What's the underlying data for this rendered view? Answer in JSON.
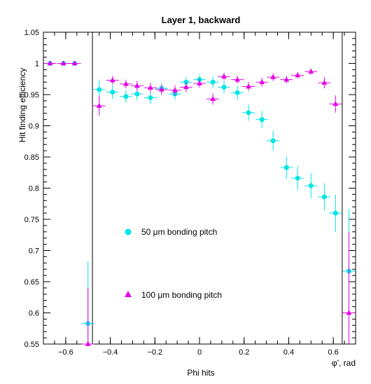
{
  "chart_data": {
    "type": "scatter",
    "title": "Layer 1, backward",
    "xlabel": "Phi hits",
    "ylabel": "Hit finding efficiency",
    "corner_label": "φ', rad",
    "xlim": [
      -0.7,
      0.7
    ],
    "ylim": [
      0.55,
      1.05
    ],
    "x_ticks": [
      -0.6,
      -0.4,
      -0.2,
      0,
      0.2,
      0.4,
      0.6
    ],
    "x_tick_labels": [
      "−0.6",
      "−0.4",
      "−0.2",
      "0",
      "0.2",
      "0.4",
      "0.6"
    ],
    "y_ticks": [
      0.55,
      0.6,
      0.65,
      0.7,
      0.75,
      0.8,
      0.85,
      0.9,
      0.95,
      1,
      1.05
    ],
    "y_tick_labels": [
      "0.55",
      "0.6",
      "0.65",
      "0.7",
      "0.75",
      "0.8",
      "0.85",
      "0.9",
      "0.95",
      "1",
      "1.05"
    ],
    "vertical_lines": [
      -0.48,
      0.64
    ],
    "x_error": 0.028,
    "series": [
      {
        "name": "50 μm bonding pitch",
        "marker": "circle",
        "color": "#00e5e5",
        "points": [
          {
            "x": -0.67,
            "y": 1.0,
            "err": 0.0
          },
          {
            "x": -0.61,
            "y": 1.0,
            "err": 0.0
          },
          {
            "x": -0.56,
            "y": 1.0,
            "err": 0.0
          },
          {
            "x": -0.5,
            "y": 0.583,
            "err": 0.1
          },
          {
            "x": -0.45,
            "y": 0.958,
            "err": 0.016
          },
          {
            "x": -0.39,
            "y": 0.954,
            "err": 0.011
          },
          {
            "x": -0.33,
            "y": 0.947,
            "err": 0.01
          },
          {
            "x": -0.28,
            "y": 0.951,
            "err": 0.01
          },
          {
            "x": -0.22,
            "y": 0.945,
            "err": 0.01
          },
          {
            "x": -0.17,
            "y": 0.96,
            "err": 0.009
          },
          {
            "x": -0.11,
            "y": 0.951,
            "err": 0.009
          },
          {
            "x": -0.06,
            "y": 0.97,
            "err": 0.008
          },
          {
            "x": 0.0,
            "y": 0.974,
            "err": 0.008
          },
          {
            "x": 0.06,
            "y": 0.97,
            "err": 0.009
          },
          {
            "x": 0.11,
            "y": 0.962,
            "err": 0.01
          },
          {
            "x": 0.17,
            "y": 0.953,
            "err": 0.011
          },
          {
            "x": 0.22,
            "y": 0.921,
            "err": 0.013
          },
          {
            "x": 0.28,
            "y": 0.91,
            "err": 0.014
          },
          {
            "x": 0.33,
            "y": 0.876,
            "err": 0.016
          },
          {
            "x": 0.39,
            "y": 0.833,
            "err": 0.018
          },
          {
            "x": 0.44,
            "y": 0.816,
            "err": 0.019
          },
          {
            "x": 0.5,
            "y": 0.804,
            "err": 0.02
          },
          {
            "x": 0.56,
            "y": 0.786,
            "err": 0.022
          },
          {
            "x": 0.61,
            "y": 0.76,
            "err": 0.03
          },
          {
            "x": 0.67,
            "y": 0.667,
            "err": 0.1
          }
        ]
      },
      {
        "name": "100 μm bonding pitch",
        "marker": "triangle",
        "color": "#e600e6",
        "points": [
          {
            "x": -0.67,
            "y": 1.0,
            "err": 0.0
          },
          {
            "x": -0.61,
            "y": 1.0,
            "err": 0.0
          },
          {
            "x": -0.56,
            "y": 1.0,
            "err": 0.0
          },
          {
            "x": -0.5,
            "y": 0.55,
            "err": 0.09
          },
          {
            "x": -0.45,
            "y": 0.932,
            "err": 0.016
          },
          {
            "x": -0.39,
            "y": 0.973,
            "err": 0.007
          },
          {
            "x": -0.33,
            "y": 0.967,
            "err": 0.007
          },
          {
            "x": -0.28,
            "y": 0.964,
            "err": 0.008
          },
          {
            "x": -0.22,
            "y": 0.961,
            "err": 0.008
          },
          {
            "x": -0.17,
            "y": 0.958,
            "err": 0.008
          },
          {
            "x": -0.11,
            "y": 0.957,
            "err": 0.008
          },
          {
            "x": -0.06,
            "y": 0.962,
            "err": 0.008
          },
          {
            "x": 0.0,
            "y": 0.968,
            "err": 0.007
          },
          {
            "x": 0.06,
            "y": 0.943,
            "err": 0.009
          },
          {
            "x": 0.11,
            "y": 0.979,
            "err": 0.006
          },
          {
            "x": 0.17,
            "y": 0.974,
            "err": 0.006
          },
          {
            "x": 0.22,
            "y": 0.963,
            "err": 0.007
          },
          {
            "x": 0.28,
            "y": 0.97,
            "err": 0.007
          },
          {
            "x": 0.33,
            "y": 0.978,
            "err": 0.006
          },
          {
            "x": 0.39,
            "y": 0.974,
            "err": 0.006
          },
          {
            "x": 0.44,
            "y": 0.981,
            "err": 0.005
          },
          {
            "x": 0.5,
            "y": 0.987,
            "err": 0.005
          },
          {
            "x": 0.56,
            "y": 0.969,
            "err": 0.009
          },
          {
            "x": 0.61,
            "y": 0.935,
            "err": 0.014
          },
          {
            "x": 0.67,
            "y": 0.6,
            "err": 0.13
          }
        ]
      }
    ]
  }
}
